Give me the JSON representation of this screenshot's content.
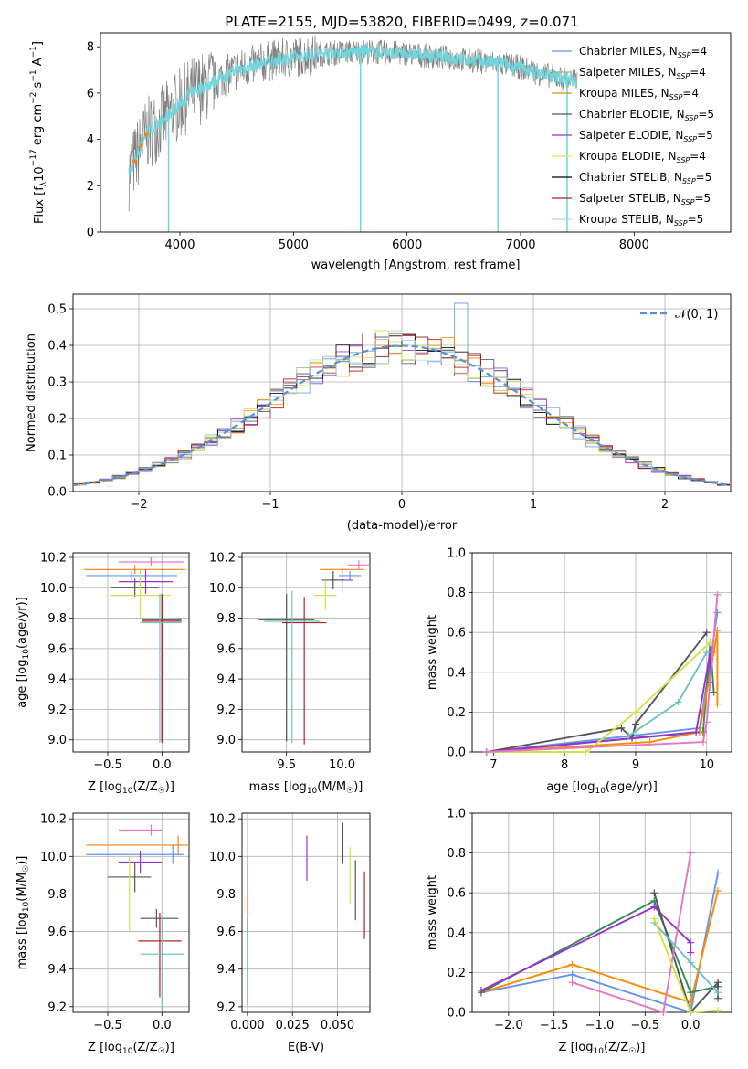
{
  "figure": {
    "title": "PLATE=2155, MJD=53820, FIBERID=0499, z=0.071"
  },
  "colors": {
    "series": [
      "#6495ed",
      "#8fbc8f",
      "#ff8c00",
      "#555555",
      "#9932cc",
      "#ffff00",
      "#000000",
      "#b22222",
      "#add8e6"
    ],
    "data_spectrum": "#808080",
    "model_spectrum": "#6fd6dc",
    "gaussian": "#5b8fd4",
    "grid": "#b0b0b0"
  },
  "chart_data": [
    {
      "id": "spectrum",
      "type": "line",
      "xlabel": "wavelength [Angstrom, rest frame]",
      "ylabel_parts": [
        "Flux [f",
        "λ",
        "10",
        "−17",
        " erg cm",
        "−2",
        " s",
        "−1",
        " A",
        "−1",
        "]"
      ],
      "xlim": [
        3300,
        8850
      ],
      "ylim": [
        0,
        8.6
      ],
      "xticks": [
        4000,
        5000,
        6000,
        7000,
        8000
      ],
      "yticks": [
        0,
        2,
        4,
        6,
        8
      ],
      "grid": false,
      "legend_position": "right",
      "legend": [
        {
          "label": "Chabrier MILES, N",
          "sub": "SSP",
          "value": "=4",
          "color": "#6495ed"
        },
        {
          "label": "Salpeter MILES, N",
          "sub": "SSP",
          "value": "=4",
          "color": "#8fbc8f"
        },
        {
          "label": "Kroupa MILES, N",
          "sub": "SSP",
          "value": "=4",
          "color": "#d2900c"
        },
        {
          "label": "Chabrier ELODIE, N",
          "sub": "SSP",
          "value": "=5",
          "color": "#555555"
        },
        {
          "label": "Salpeter ELODIE, N",
          "sub": "SSP",
          "value": "=5",
          "color": "#9932cc"
        },
        {
          "label": "Kroupa ELODIE, N",
          "sub": "SSP",
          "value": "=4",
          "color": "#e5e54a"
        },
        {
          "label": "Chabrier STELIB, N",
          "sub": "SSP",
          "value": "=5",
          "color": "#000000"
        },
        {
          "label": "Salpeter STELIB, N",
          "sub": "SSP",
          "value": "=5",
          "color": "#b22222"
        },
        {
          "label": "Kroupa STELIB, N",
          "sub": "SSP",
          "value": "=5",
          "color": "#add8e6"
        }
      ],
      "continuum_x": [
        3550,
        3700,
        3850,
        3950,
        4100,
        4300,
        4500,
        4800,
        5200,
        5600,
        6000,
        6400,
        6800,
        7000,
        7200,
        7500
      ],
      "continuum_y": [
        2.5,
        4.2,
        4.8,
        5.3,
        6.0,
        6.5,
        7.0,
        7.4,
        7.7,
        7.8,
        7.7,
        7.5,
        7.3,
        7.1,
        6.8,
        6.5
      ],
      "dips_x": [
        3900,
        5590,
        6800,
        7410
      ],
      "x_start": 3550,
      "x_end": 7500
    },
    {
      "id": "residual_hist",
      "type": "line",
      "xlabel": "(data-model)/error",
      "ylabel": "Normed distribution",
      "xlim": [
        -2.5,
        2.5
      ],
      "ylim": [
        0,
        0.54
      ],
      "xticks": [
        -2,
        -1,
        0,
        1,
        2
      ],
      "xtick_labels": [
        "−2",
        "−1",
        "0",
        "1",
        "2"
      ],
      "yticks": [
        0.0,
        0.1,
        0.2,
        0.3,
        0.4,
        0.5
      ],
      "ytick_labels": [
        "0.0",
        "0.1",
        "0.2",
        "0.3",
        "0.4",
        "0.5"
      ],
      "grid": true,
      "legend_position": "upper right",
      "legend": [
        {
          "label": "𝒩(0, 1)",
          "style": "dashed"
        }
      ],
      "gaussian_mu": 0,
      "gaussian_sigma": 1,
      "bin_width": 0.1
    },
    {
      "id": "age_vs_Z",
      "type": "scatter",
      "xlabel": "Z [log10(Z/Z☉)]",
      "xlabel_parts": [
        "Z [log",
        "10",
        "(Z/Z",
        "☉",
        ")]"
      ],
      "ylabel_parts": [
        "age  [log",
        "10",
        "(age/yr)]"
      ],
      "xlim": [
        -0.82,
        0.25
      ],
      "ylim": [
        8.92,
        10.23
      ],
      "xticks": [
        -0.5,
        0.0
      ],
      "xtick_labels": [
        "−0.5",
        "0.0"
      ],
      "yticks": [
        9.0,
        9.2,
        9.4,
        9.6,
        9.8,
        10.0,
        10.2
      ],
      "ytick_labels": [
        "9.0",
        "9.2",
        "9.4",
        "9.6",
        "9.8",
        "10.0",
        "10.2"
      ],
      "grid": true,
      "points": [
        {
          "x": -0.1,
          "xerr": [
            0.3,
            0.3
          ],
          "y": 10.17,
          "yerr": [
            0.03,
            0.03
          ]
        },
        {
          "x": -0.25,
          "xerr": [
            0.47,
            0.47
          ],
          "y": 10.12,
          "yerr": [
            0.03,
            0.03
          ]
        },
        {
          "x": -0.28,
          "xerr": [
            0.42,
            0.42
          ],
          "y": 10.08,
          "yerr": [
            0.03,
            0.03
          ]
        },
        {
          "x": -0.15,
          "xerr": [
            0.25,
            0.25
          ],
          "y": 10.04,
          "yerr": [
            0.08,
            0.08
          ]
        },
        {
          "x": -0.25,
          "xerr": [
            0.22,
            0.22
          ],
          "y": 10.0,
          "yerr": [
            0.06,
            0.06
          ]
        },
        {
          "x": -0.2,
          "xerr": [
            0.28,
            0.28
          ],
          "y": 9.95,
          "yerr": [
            0.16,
            0.16
          ]
        },
        {
          "x": 0.0,
          "xerr": [
            0.18,
            0.18
          ],
          "y": 9.79,
          "yerr": [
            0.8,
            0.17
          ]
        },
        {
          "x": 0.0,
          "xerr": [
            0.18,
            0.18
          ],
          "y": 9.78,
          "yerr": [
            0.8,
            0.17
          ]
        },
        {
          "x": -0.02,
          "xerr": [
            0.18,
            0.2
          ],
          "y": 9.77,
          "yerr": [
            0.79,
            0.19
          ]
        }
      ]
    },
    {
      "id": "age_vs_mass",
      "type": "scatter",
      "xlabel_parts": [
        "mass [log",
        "10",
        "(M/M",
        "☉",
        ")]"
      ],
      "xlim": [
        9.1,
        10.25
      ],
      "ylim": [
        8.92,
        10.23
      ],
      "xticks": [
        9.5,
        10.0
      ],
      "xtick_labels": [
        "9.5",
        "10.0"
      ],
      "yticks": [
        9.0,
        9.2,
        9.4,
        9.6,
        9.8,
        10.0,
        10.2
      ],
      "ytick_labels": [
        "9.0",
        "9.2",
        "9.4",
        "9.6",
        "9.8",
        "10.0",
        "10.2"
      ],
      "grid": true,
      "points": [
        {
          "x": 10.15,
          "xerr": [
            0.1,
            0.1
          ],
          "y": 10.15,
          "yerr": [
            0.03,
            0.03
          ]
        },
        {
          "x": 10.0,
          "xerr": [
            0.2,
            0.2
          ],
          "y": 10.12,
          "yerr": [
            0.03,
            0.03
          ]
        },
        {
          "x": 10.07,
          "xerr": [
            0.1,
            0.1
          ],
          "y": 10.08,
          "yerr": [
            0.03,
            0.03
          ]
        },
        {
          "x": 10.0,
          "xerr": [
            0.1,
            0.1
          ],
          "y": 10.05,
          "yerr": [
            0.08,
            0.08
          ]
        },
        {
          "x": 9.92,
          "xerr": [
            0.1,
            0.1
          ],
          "y": 10.05,
          "yerr": [
            0.06,
            0.06
          ]
        },
        {
          "x": 9.85,
          "xerr": [
            0.1,
            0.1
          ],
          "y": 9.95,
          "yerr": [
            0.1,
            0.1
          ]
        },
        {
          "x": 9.5,
          "xerr": [
            0.25,
            0.25
          ],
          "y": 9.79,
          "yerr": [
            0.8,
            0.17
          ]
        },
        {
          "x": 9.66,
          "xerr": [
            0.2,
            0.2
          ],
          "y": 9.77,
          "yerr": [
            0.8,
            0.17
          ]
        },
        {
          "x": 9.55,
          "xerr": [
            0.25,
            0.25
          ],
          "y": 9.78,
          "yerr": [
            0.8,
            0.2
          ]
        }
      ]
    },
    {
      "id": "mass_weight_vs_age",
      "type": "line",
      "xlabel_parts": [
        "age  [log",
        "10",
        "(age/yr)]"
      ],
      "ylabel": "mass weight",
      "xlim": [
        6.7,
        10.35
      ],
      "ylim": [
        0,
        1.0
      ],
      "xticks": [
        7,
        8,
        9,
        10
      ],
      "yticks": [
        0.0,
        0.2,
        0.4,
        0.6,
        0.8,
        1.0
      ],
      "ytick_labels": [
        "0.0",
        "0.2",
        "0.4",
        "0.6",
        "0.8",
        "1.0"
      ],
      "grid": true,
      "series": [
        {
          "color": "#6495ed",
          "x": [
            6.9,
            9.9,
            10.05,
            10.15
          ],
          "y": [
            0.0,
            0.12,
            0.45,
            0.7
          ]
        },
        {
          "color": "#2e8b57",
          "x": [
            6.9,
            9.95,
            10.05,
            10.1
          ],
          "y": [
            0.0,
            0.1,
            0.55,
            0.3
          ]
        },
        {
          "color": "#ff8c00",
          "x": [
            6.9,
            9.2,
            9.9,
            10.1,
            10.15,
            10.15
          ],
          "y": [
            0.0,
            0.05,
            0.1,
            0.5,
            0.61,
            0.24
          ]
        },
        {
          "color": "#555555",
          "x": [
            6.9,
            8.8,
            8.95,
            9.0,
            10.0
          ],
          "y": [
            0.0,
            0.12,
            0.07,
            0.14,
            0.6
          ]
        },
        {
          "color": "#9932cc",
          "x": [
            6.9,
            9.85,
            10.05,
            10.05
          ],
          "y": [
            0.0,
            0.1,
            0.5,
            0.35
          ]
        },
        {
          "color": "#d4e04a",
          "x": [
            6.9,
            8.3,
            9.0,
            10.05
          ],
          "y": [
            0.0,
            0.0,
            0.2,
            0.55
          ]
        },
        {
          "color": "#e377c2",
          "x": [
            6.9,
            9.95,
            10.0,
            10.15
          ],
          "y": [
            0.0,
            0.05,
            0.15,
            0.79
          ]
        },
        {
          "color": "#6fc1c1",
          "x": [
            8.9,
            9.6,
            10.0
          ],
          "y": [
            0.08,
            0.25,
            0.5
          ]
        }
      ]
    },
    {
      "id": "mass_vs_Z",
      "type": "scatter",
      "xlabel_parts": [
        "Z [log",
        "10",
        "(Z/Z",
        "☉",
        ")]"
      ],
      "ylabel_parts": [
        "mass [log",
        "10",
        "(M/M",
        "☉",
        ")]"
      ],
      "xlim": [
        -0.82,
        0.25
      ],
      "ylim": [
        9.17,
        10.23
      ],
      "xticks": [
        -0.5,
        0.0
      ],
      "xtick_labels": [
        "−0.5",
        "0.0"
      ],
      "yticks": [
        9.2,
        9.4,
        9.6,
        9.8,
        10.0,
        10.2
      ],
      "ytick_labels": [
        "9.2",
        "9.4",
        "9.6",
        "9.8",
        "10.0",
        "10.2"
      ],
      "grid": true,
      "points": [
        {
          "x": -0.1,
          "xerr": [
            0.3,
            0.1
          ],
          "y": 10.14,
          "yerr": [
            0.03,
            0.03
          ]
        },
        {
          "x": 0.15,
          "xerr": [
            0.85,
            0.1
          ],
          "y": 10.06,
          "yerr": [
            0.05,
            0.05
          ]
        },
        {
          "x": 0.1,
          "xerr": [
            0.8,
            0.1
          ],
          "y": 10.01,
          "yerr": [
            0.05,
            0.05
          ]
        },
        {
          "x": -0.2,
          "xerr": [
            0.2,
            0.2
          ],
          "y": 9.97,
          "yerr": [
            0.06,
            0.06
          ]
        },
        {
          "x": -0.25,
          "xerr": [
            0.25,
            0.15
          ],
          "y": 9.89,
          "yerr": [
            0.08,
            0.08
          ]
        },
        {
          "x": -0.3,
          "xerr": [
            0.2,
            0.2
          ],
          "y": 9.8,
          "yerr": [
            0.2,
            0.2
          ]
        },
        {
          "x": -0.05,
          "xerr": [
            0.15,
            0.2
          ],
          "y": 9.67,
          "yerr": [
            0.05,
            0.05
          ]
        },
        {
          "x": -0.02,
          "xerr": [
            0.2,
            0.2
          ],
          "y": 9.55,
          "yerr": [
            0.3,
            0.15
          ]
        },
        {
          "x": 0.0,
          "xerr": [
            0.2,
            0.2
          ],
          "y": 9.48,
          "yerr": [
            0.3,
            0.2
          ]
        }
      ]
    },
    {
      "id": "mass_vs_ebv",
      "type": "scatter",
      "xlabel": "E(B-V)",
      "xlim": [
        -0.003,
        0.068
      ],
      "ylim": [
        9.17,
        10.23
      ],
      "xticks": [
        0.0,
        0.025,
        0.05
      ],
      "xtick_labels": [
        "0.000",
        "0.025",
        "0.050"
      ],
      "yticks": [
        9.2,
        9.4,
        9.6,
        9.8,
        10.0,
        10.2
      ],
      "ytick_labels": [
        "9.2",
        "9.4",
        "9.6",
        "9.8",
        "10.0",
        "10.2"
      ],
      "grid": true,
      "points": [
        {
          "x": 0.0,
          "y": 9.9,
          "yerr": [
            0.1,
            0.1
          ]
        },
        {
          "x": 0.0,
          "y": 9.7,
          "yerr": [
            0.1,
            0.1
          ]
        },
        {
          "x": 0.0,
          "y": 9.44,
          "yerr": [
            0.23,
            0.23
          ]
        },
        {
          "x": 0.033,
          "y": 9.99,
          "yerr": [
            0.12,
            0.12
          ]
        },
        {
          "x": 0.053,
          "y": 10.07,
          "yerr": [
            0.11,
            0.11
          ]
        },
        {
          "x": 0.057,
          "y": 9.9,
          "yerr": [
            0.15,
            0.15
          ]
        },
        {
          "x": 0.06,
          "y": 9.82,
          "yerr": [
            0.16,
            0.16
          ]
        },
        {
          "x": 0.065,
          "y": 9.74,
          "yerr": [
            0.18,
            0.18
          ]
        }
      ]
    },
    {
      "id": "mass_weight_vs_Z",
      "type": "line",
      "xlabel_parts": [
        "Z [log",
        "10",
        "(Z/Z",
        "☉",
        ")]"
      ],
      "ylabel": "mass weight",
      "xlim": [
        -2.4,
        0.45
      ],
      "ylim": [
        0,
        1.0
      ],
      "xticks": [
        -2.0,
        -1.5,
        -1.0,
        -0.5,
        0.0
      ],
      "xtick_labels": [
        "−2.0",
        "−1.5",
        "−1.0",
        "−0.5",
        "0.0"
      ],
      "yticks": [
        0.0,
        0.2,
        0.4,
        0.6,
        0.8,
        1.0
      ],
      "ytick_labels": [
        "0.0",
        "0.2",
        "0.4",
        "0.6",
        "0.8",
        "1.0"
      ],
      "grid": true,
      "series": [
        {
          "color": "#6495ed",
          "x": [
            -2.3,
            -1.3,
            0.0,
            0.3
          ],
          "y": [
            0.1,
            0.19,
            0.0,
            0.7
          ]
        },
        {
          "color": "#ff8c00",
          "x": [
            -2.3,
            -1.3,
            0.0,
            0.3
          ],
          "y": [
            0.1,
            0.24,
            0.05,
            0.61
          ]
        },
        {
          "color": "#2e8b57",
          "x": [
            -2.3,
            -0.4,
            0.0,
            0.3
          ],
          "y": [
            0.1,
            0.56,
            0.1,
            0.13
          ]
        },
        {
          "color": "#9932cc",
          "x": [
            -2.3,
            -0.4,
            0.0,
            0.0
          ],
          "y": [
            0.11,
            0.53,
            0.35,
            0.3
          ]
        },
        {
          "color": "#555555",
          "x": [
            -0.4,
            0.0,
            0.3,
            0.3
          ],
          "y": [
            0.6,
            0.0,
            0.15,
            0.07
          ]
        },
        {
          "color": "#e377c2",
          "x": [
            -1.3,
            -0.3,
            0.0
          ],
          "y": [
            0.15,
            0.0,
            0.8
          ]
        },
        {
          "color": "#6fc1c1",
          "x": [
            -0.4,
            0.0,
            0.3
          ],
          "y": [
            0.45,
            0.25,
            0.1
          ]
        },
        {
          "color": "#d4e04a",
          "x": [
            -0.4,
            0.0,
            0.3
          ],
          "y": [
            0.47,
            0.0,
            0.01
          ]
        }
      ]
    }
  ]
}
